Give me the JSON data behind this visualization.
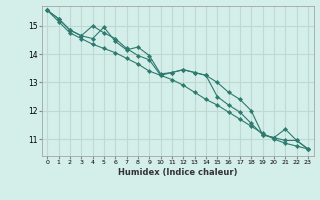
{
  "background_color": "#d4eeea",
  "grid_color": "#c0d8d4",
  "line_color": "#2d7a6e",
  "marker": "D",
  "marker_size": 2.2,
  "xlabel": "Humidex (Indice chaleur)",
  "x_ticks": [
    0,
    1,
    2,
    3,
    4,
    5,
    6,
    7,
    8,
    9,
    10,
    11,
    12,
    13,
    14,
    15,
    16,
    17,
    18,
    19,
    20,
    21,
    22,
    23
  ],
  "ylim": [
    10.4,
    15.7
  ],
  "xlim": [
    -0.5,
    23.5
  ],
  "y_ticks": [
    11,
    12,
    13,
    14,
    15
  ],
  "series": [
    [
      15.55,
      15.25,
      14.85,
      14.65,
      14.55,
      14.95,
      14.45,
      14.15,
      14.25,
      13.95,
      13.3,
      13.35,
      13.45,
      13.35,
      13.25,
      13.0,
      12.65,
      12.4,
      12.0,
      11.15,
      11.05,
      10.95,
      10.95,
      10.65
    ],
    [
      15.55,
      15.15,
      14.75,
      14.55,
      14.35,
      14.2,
      14.05,
      13.85,
      13.65,
      13.4,
      13.25,
      13.1,
      12.9,
      12.65,
      12.4,
      12.2,
      11.95,
      11.7,
      11.45,
      11.2,
      11.0,
      10.85,
      10.75,
      10.65
    ],
    [
      15.55,
      15.25,
      14.85,
      14.65,
      15.0,
      14.75,
      14.55,
      14.2,
      13.95,
      13.8,
      13.25,
      13.35,
      13.45,
      13.35,
      13.25,
      12.5,
      12.2,
      11.95,
      11.55,
      11.15,
      11.05,
      11.35,
      10.95,
      10.65
    ]
  ]
}
